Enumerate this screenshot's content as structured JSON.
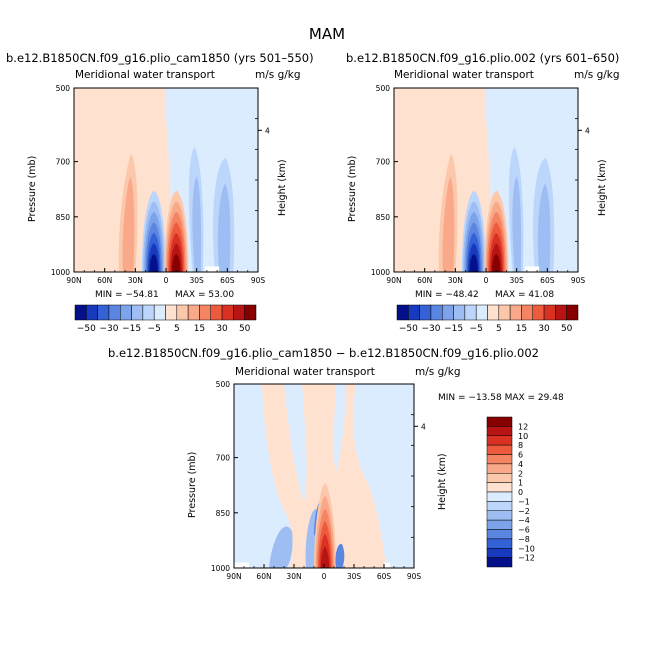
{
  "main_title": "MAM",
  "panels": [
    {
      "title": "b.e12.B1850CN.f09_g16.plio_cam1850 (yrs 501–550)",
      "plot_title": "Meridional water transport",
      "units": "m/s g/kg",
      "ylabel": "Pressure (mb)",
      "y2label": "Height (km)",
      "min_text": "MIN = −54.81",
      "max_text": "MAX =  53.00"
    },
    {
      "title": "b.e12.B1850CN.f09_g16.plio.002 (yrs 601–650)",
      "plot_title": "Meridional water transport",
      "units": "m/s g/kg",
      "ylabel": "Pressure (mb)",
      "y2label": "Height (km)",
      "min_text": "MIN = −48.42",
      "max_text": "MAX =  41.08"
    },
    {
      "title": "b.e12.B1850CN.f09_g16.plio_cam1850 − b.e12.B1850CN.f09_g16.plio.002",
      "plot_title": "Meridional water transport",
      "units": "m/s g/kg",
      "ylabel": "Pressure (mb)",
      "y2label": "Height (km)",
      "minmax_text": "MIN = −13.58  MAX =  29.48"
    }
  ],
  "chart_data": [
    {
      "type": "heatmap",
      "title": "b.e12.B1850CN.f09_g16.plio_cam1850 (yrs 501–550)",
      "xlabel": "",
      "ylabel": "Pressure (mb)",
      "y2label": "Height (km)",
      "x_ticks": [
        "90N",
        "60N",
        "30N",
        "0",
        "30S",
        "60S",
        "90S"
      ],
      "y_ticks": [
        "500",
        "700",
        "850",
        "1000"
      ],
      "y2_ticks": [
        "4"
      ],
      "xlim": [
        90,
        -90
      ],
      "ylim": [
        1000,
        500
      ],
      "min": -54.81,
      "max": 53.0,
      "levels": [
        -50,
        -40,
        -30,
        -20,
        -15,
        -10,
        -5,
        -1,
        1,
        5,
        10,
        15,
        20,
        30,
        40,
        50
      ],
      "colorbar_labels": [
        "−50",
        "−30",
        "−15",
        "−5",
        "5",
        "15",
        "30",
        "50"
      ]
    },
    {
      "type": "heatmap",
      "title": "b.e12.B1850CN.f09_g16.plio.002 (yrs 601–650)",
      "xlabel": "",
      "ylabel": "Pressure (mb)",
      "y2label": "Height (km)",
      "x_ticks": [
        "90N",
        "60N",
        "30N",
        "0",
        "30S",
        "60S",
        "90S"
      ],
      "y_ticks": [
        "500",
        "700",
        "850",
        "1000"
      ],
      "y2_ticks": [
        "4"
      ],
      "xlim": [
        90,
        -90
      ],
      "ylim": [
        1000,
        500
      ],
      "min": -48.42,
      "max": 41.08,
      "levels": [
        -50,
        -40,
        -30,
        -20,
        -15,
        -10,
        -5,
        -1,
        1,
        5,
        10,
        15,
        20,
        30,
        40,
        50
      ],
      "colorbar_labels": [
        "−50",
        "−30",
        "−15",
        "−5",
        "5",
        "15",
        "30",
        "50"
      ]
    },
    {
      "type": "heatmap",
      "title": "b.e12.B1850CN.f09_g16.plio_cam1850 − b.e12.B1850CN.f09_g16.plio.002",
      "xlabel": "",
      "ylabel": "Pressure (mb)",
      "y2label": "Height (km)",
      "x_ticks": [
        "90N",
        "60N",
        "30N",
        "0",
        "30S",
        "60S",
        "90S"
      ],
      "y_ticks": [
        "500",
        "700",
        "850",
        "1000"
      ],
      "y2_ticks": [
        "4"
      ],
      "xlim": [
        90,
        -90
      ],
      "ylim": [
        1000,
        500
      ],
      "min": -13.58,
      "max": 29.48,
      "colorbar_labels": [
        "12",
        "10",
        "8",
        "6",
        "4",
        "2",
        "1",
        "0",
        "−1",
        "−2",
        "−4",
        "−6",
        "−8",
        "−10",
        "−12"
      ]
    }
  ],
  "colors": {
    "pos_ramp": [
      "#fee1cf",
      "#fcc8ab",
      "#f9a98a",
      "#f58463",
      "#ee5a3e",
      "#d93222",
      "#b81414",
      "#860000"
    ],
    "neg_ramp": [
      "#dcecff",
      "#bcd6fb",
      "#9dbdf3",
      "#7da3ea",
      "#5a85e0",
      "#3461d6",
      "#1639bd",
      "#04108a"
    ],
    "diff_ramp": [
      "#860000",
      "#b81414",
      "#d93222",
      "#ee5a3e",
      "#f58463",
      "#f9a98a",
      "#fcc8ab",
      "#fee1cf",
      "#dcecff",
      "#bcd6fb",
      "#9dbdf3",
      "#7da3ea",
      "#5a85e0",
      "#3461d6",
      "#1639bd",
      "#04108a"
    ]
  }
}
